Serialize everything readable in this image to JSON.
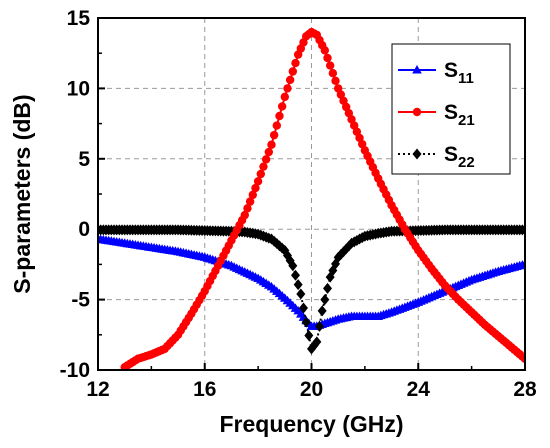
{
  "chart_data": {
    "type": "line",
    "title": "",
    "xlabel": "Frequency (GHz)",
    "ylabel": "S-parameters (dB)",
    "xlim": [
      12,
      28
    ],
    "ylim": [
      -10,
      15
    ],
    "xticks": [
      "12",
      "16",
      "20",
      "24",
      "28"
    ],
    "yticks": [
      "-10",
      "-5",
      "0",
      "5",
      "10",
      "15"
    ],
    "grid": true,
    "legend_position": "top-right",
    "series": [
      {
        "name_main": "S",
        "name_sub": "11",
        "color": "#0000ff",
        "marker": "triangle",
        "line": "solid",
        "x": [
          12,
          13,
          14,
          15,
          16,
          17,
          18,
          18.5,
          19,
          19.5,
          19.8,
          20,
          20.2,
          20.5,
          21,
          21.5,
          22,
          22.5,
          23,
          24,
          25,
          26,
          27,
          28
        ],
        "y": [
          -0.7,
          -1.0,
          -1.3,
          -1.6,
          -2.0,
          -2.6,
          -3.5,
          -4.1,
          -4.9,
          -5.8,
          -6.5,
          -6.9,
          -6.9,
          -6.7,
          -6.4,
          -6.2,
          -6.2,
          -6.2,
          -5.9,
          -5.2,
          -4.4,
          -3.6,
          -3.0,
          -2.5
        ]
      },
      {
        "name_main": "S",
        "name_sub": "21",
        "color": "#ff0000",
        "marker": "circle",
        "line": "solid",
        "x": [
          13,
          13.5,
          14,
          14.5,
          15,
          15.5,
          16,
          16.5,
          17,
          17.5,
          18,
          18.5,
          19,
          19.5,
          19.8,
          20,
          20.2,
          20.5,
          21,
          21.5,
          22,
          22.5,
          23,
          23.5,
          24,
          24.5,
          25,
          25.5,
          26,
          26.5,
          27,
          27.5,
          28
        ],
        "y": [
          -9.8,
          -9.2,
          -8.9,
          -8.5,
          -7.5,
          -6.0,
          -4.4,
          -2.6,
          -0.8,
          1.0,
          3.4,
          6.0,
          9.4,
          12.4,
          13.7,
          14.0,
          13.8,
          12.7,
          10.0,
          7.8,
          5.6,
          3.6,
          1.7,
          0.0,
          -1.5,
          -2.8,
          -4.0,
          -5.0,
          -5.9,
          -6.8,
          -7.6,
          -8.4,
          -9.2
        ]
      },
      {
        "name_main": "S",
        "name_sub": "22",
        "color": "#000000",
        "marker": "diamond",
        "line": "dotted",
        "x": [
          12,
          13,
          14,
          15,
          16,
          17,
          17.5,
          18,
          18.5,
          19,
          19.3,
          19.6,
          19.8,
          20,
          20.2,
          20.4,
          20.7,
          21,
          21.5,
          22,
          22.5,
          23,
          24,
          25,
          26,
          27,
          28
        ],
        "y": [
          -0.05,
          -0.05,
          -0.05,
          -0.05,
          -0.1,
          -0.15,
          -0.2,
          -0.35,
          -0.7,
          -1.5,
          -2.6,
          -4.6,
          -6.6,
          -8.5,
          -8.0,
          -5.8,
          -3.4,
          -2.0,
          -1.0,
          -0.5,
          -0.3,
          -0.15,
          -0.1,
          -0.05,
          -0.05,
          -0.05,
          -0.05
        ]
      }
    ]
  }
}
